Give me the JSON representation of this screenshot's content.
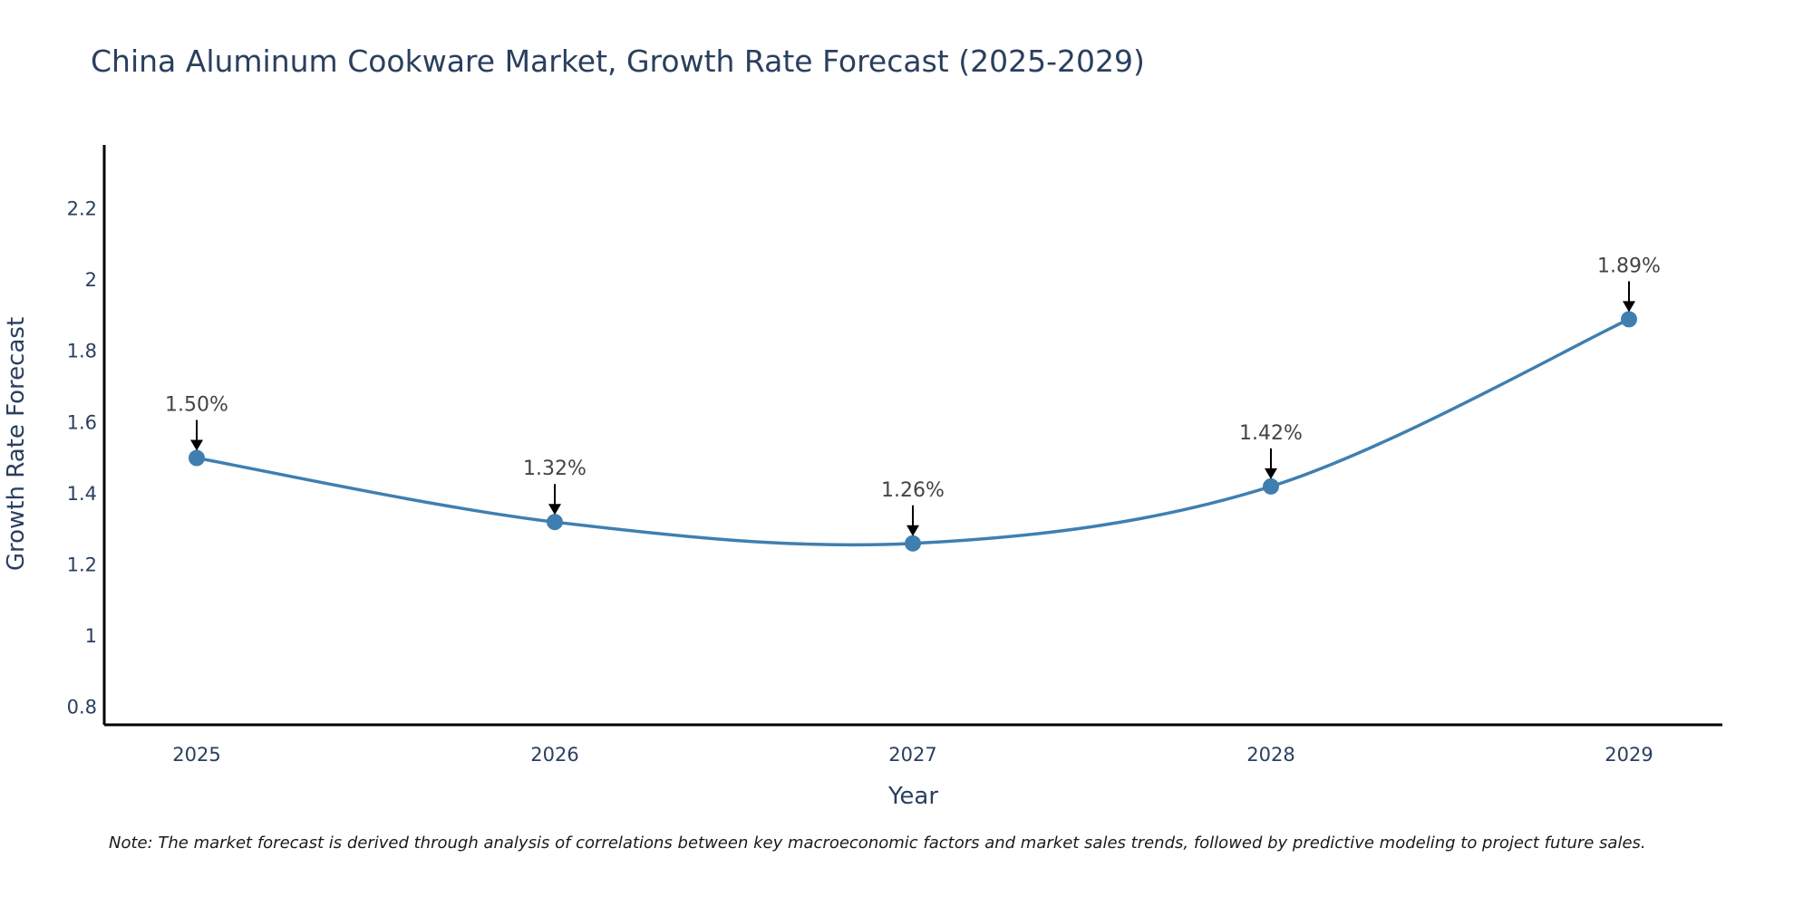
{
  "chart_title": "China Aluminum Cookware Market, Growth Rate Forecast (2025-2029)",
  "note": "Note: The market forecast is derived through analysis of correlations between key macroeconomic factors and market sales trends, followed by predictive modeling to project future sales.",
  "colors": {
    "line": "#3f7fb0",
    "marker": "#3f7fb0",
    "axis": "#000000",
    "arrow": "#000000"
  },
  "chart_data": {
    "type": "line",
    "title": "China Aluminum Cookware Market, Growth Rate Forecast (2025-2029)",
    "xlabel": "Year",
    "ylabel": "Growth Rate Forecast",
    "categories": [
      "2025",
      "2026",
      "2027",
      "2028",
      "2029"
    ],
    "values": [
      1.5,
      1.32,
      1.26,
      1.42,
      1.89
    ],
    "data_labels": [
      "1.50%",
      "1.32%",
      "1.26%",
      "1.42%",
      "1.89%"
    ],
    "yticks": [
      0.8,
      1,
      1.2,
      1.4,
      1.6,
      1.8,
      2,
      2.2
    ],
    "ytick_labels": [
      "0.8",
      "1",
      "1.2",
      "1.4",
      "1.6",
      "1.8",
      "2",
      "2.2"
    ],
    "ylim": [
      0.75,
      2.38
    ],
    "grid": false,
    "line_shape": "spline"
  }
}
